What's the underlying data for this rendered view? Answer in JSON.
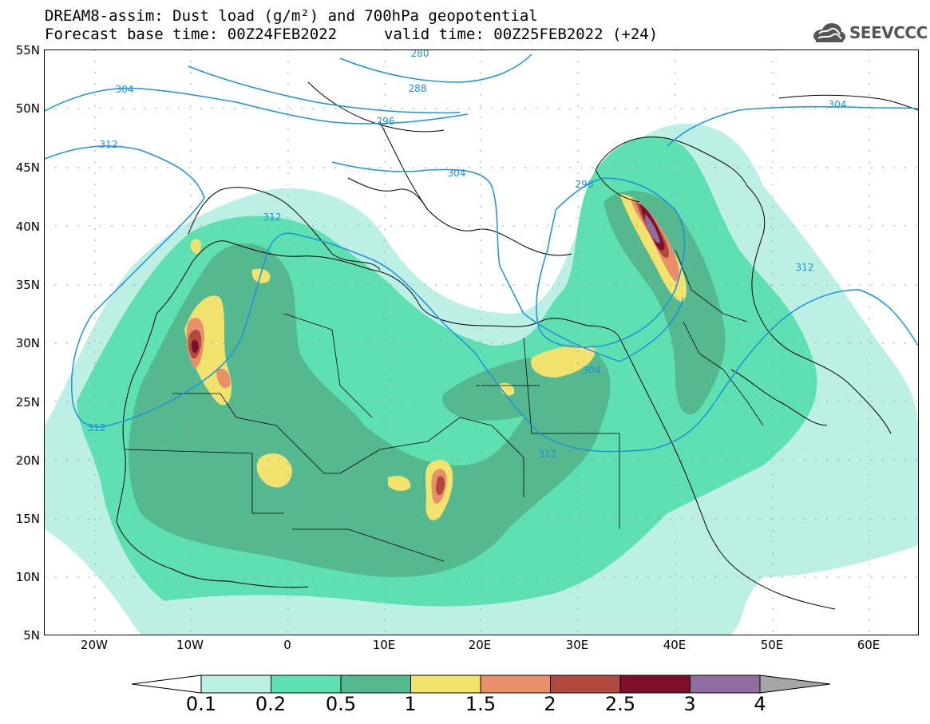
{
  "title": {
    "line1": "DREAM8-assim: Dust load (g/m²) and 700hPa geopotential",
    "line2": "Forecast base time: 00Z24FEB2022",
    "valid": "valid time: 00Z25FEB2022 (+24)"
  },
  "logo": {
    "text": "SEEVCCC",
    "icon": "cloud-logo-icon"
  },
  "axes": {
    "lat_labels": [
      "55N",
      "50N",
      "45N",
      "40N",
      "35N",
      "30N",
      "25N",
      "20N",
      "15N",
      "10N",
      "5N"
    ],
    "lon_labels": [
      "20W",
      "10W",
      "0",
      "10E",
      "20E",
      "30E",
      "40E",
      "50E",
      "60E"
    ]
  },
  "contours": {
    "labels": [
      "280",
      "288",
      "296",
      "304",
      "312",
      "304",
      "312",
      "304",
      "296",
      "312",
      "304",
      "312",
      "312"
    ]
  },
  "colorbar": {
    "labels": [
      "0.1",
      "0.2",
      "0.5",
      "1",
      "1.5",
      "2",
      "2.5",
      "3",
      "4"
    ],
    "colors": [
      "#bdf0e4",
      "#5fe0b0",
      "#55b98f",
      "#f2e26e",
      "#e98f6a",
      "#b04a3e",
      "#7d0f2c",
      "#8f6d9e",
      "#a6a6a6"
    ]
  },
  "colors": {
    "contour": "#1e90e0",
    "border": "#000000",
    "dust_low": "#bdf0e4",
    "dust_mid": "#5fe0b0",
    "dust_high": "#55b98f",
    "dust_1": "#f2e26e",
    "dust_15": "#e98f6a",
    "dust_2": "#b04a3e",
    "dust_25": "#7d0f2c",
    "dust_3": "#8f6d9e"
  }
}
